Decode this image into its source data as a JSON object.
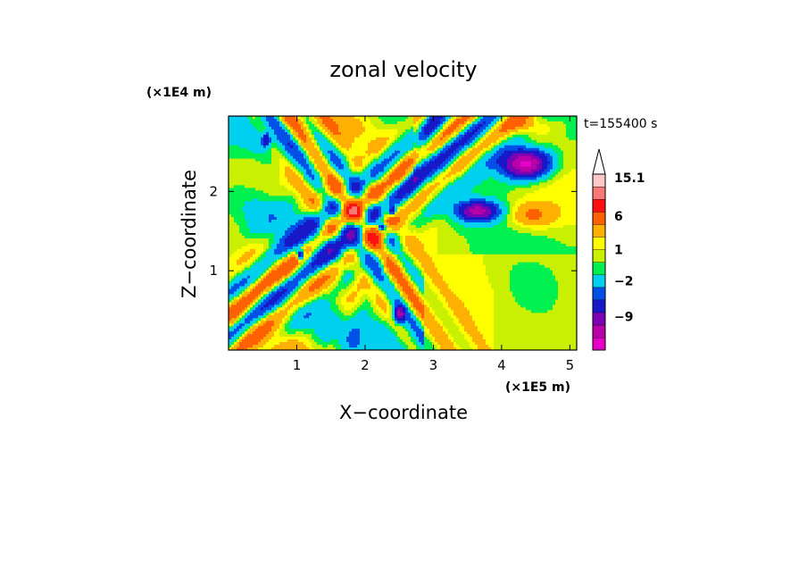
{
  "chart_data": {
    "type": "heatmap",
    "title": "zonal velocity",
    "xlabel": "X−coordinate",
    "ylabel": "Z−coordinate",
    "x_scale_label": "(×1E5 m)",
    "y_scale_label": "(×1E4 m)",
    "time_label": "t=155400 s",
    "xlim": [
      0.0,
      5.1
    ],
    "ylim": [
      0.0,
      2.95
    ],
    "x_ticks": [
      1,
      2,
      3,
      4,
      5
    ],
    "y_ticks": [
      1,
      2
    ],
    "colorbar": {
      "labels": [
        {
          "text": "15.1",
          "value": 15.1
        },
        {
          "text": "6",
          "value": 6
        },
        {
          "text": "1",
          "value": 1
        },
        {
          "text": "−2",
          "value": -2
        },
        {
          "text": "−9",
          "value": -9
        }
      ],
      "levels": [
        -14,
        -11,
        -8,
        -5,
        -3,
        -1,
        0,
        1,
        2,
        4,
        7,
        10,
        13,
        16
      ],
      "colors": [
        "#e800c8",
        "#b800a8",
        "#7c00b4",
        "#1818c8",
        "#0050e8",
        "#00d0f0",
        "#00f050",
        "#c8f000",
        "#ffff00",
        "#ffb000",
        "#ff6000",
        "#ff1010",
        "#f87878",
        "#fcc8c8"
      ]
    }
  }
}
